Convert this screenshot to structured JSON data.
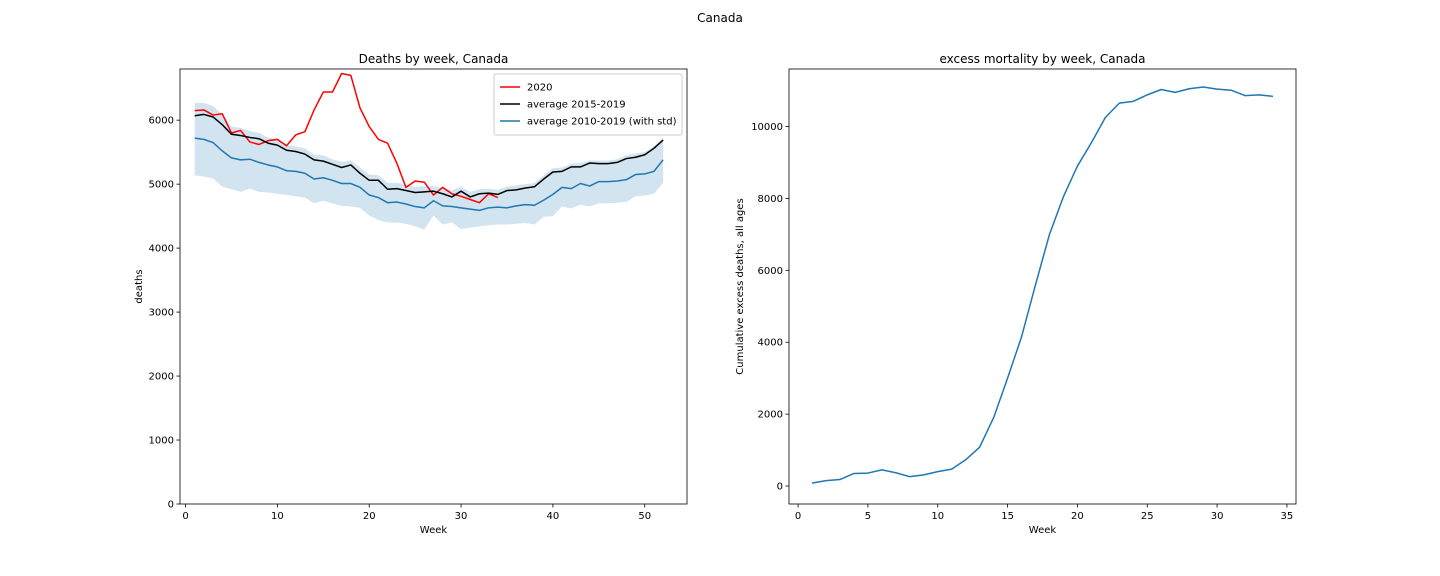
{
  "figure": {
    "suptitle": "Canada"
  },
  "chart_data": [
    {
      "type": "line",
      "title": "Deaths by week, Canada",
      "xlabel": "Week",
      "ylabel": "deaths",
      "xlim": [
        -0.6,
        54.6
      ],
      "ylim": [
        0,
        6800
      ],
      "xticks": [
        0,
        10,
        20,
        30,
        40,
        50
      ],
      "yticks": [
        0,
        1000,
        2000,
        3000,
        4000,
        5000,
        6000
      ],
      "grid": false,
      "legend": "top-right",
      "series": [
        {
          "name": "2020",
          "color": "#ff0000",
          "x": [
            1,
            2,
            3,
            4,
            5,
            6,
            7,
            8,
            9,
            10,
            11,
            12,
            13,
            14,
            15,
            16,
            17,
            18,
            19,
            20,
            21,
            22,
            23,
            24,
            25,
            26,
            27,
            28,
            29,
            30,
            31,
            32,
            33,
            34
          ],
          "values": [
            6150,
            6160,
            6080,
            6100,
            5800,
            5840,
            5660,
            5620,
            5680,
            5700,
            5600,
            5770,
            5820,
            6160,
            6440,
            6440,
            6730,
            6700,
            6190,
            5900,
            5700,
            5640,
            5330,
            4950,
            5050,
            5030,
            4830,
            4950,
            4850,
            4810,
            4760,
            4710,
            4850,
            4790
          ]
        },
        {
          "name": "average 2015-2019",
          "color": "#000000",
          "x": [
            1,
            2,
            3,
            4,
            5,
            6,
            7,
            8,
            9,
            10,
            11,
            12,
            13,
            14,
            15,
            16,
            17,
            18,
            19,
            20,
            21,
            22,
            23,
            24,
            25,
            26,
            27,
            28,
            29,
            30,
            31,
            32,
            33,
            34,
            35,
            36,
            37,
            38,
            39,
            40,
            41,
            42,
            43,
            44,
            45,
            46,
            47,
            48,
            49,
            50,
            51,
            52
          ],
          "values": [
            6070,
            6090,
            6050,
            5930,
            5780,
            5760,
            5730,
            5710,
            5640,
            5610,
            5530,
            5510,
            5470,
            5380,
            5360,
            5310,
            5260,
            5300,
            5170,
            5060,
            5060,
            4920,
            4930,
            4900,
            4870,
            4880,
            4890,
            4850,
            4800,
            4890,
            4800,
            4850,
            4860,
            4840,
            4900,
            4910,
            4940,
            4960,
            5080,
            5190,
            5200,
            5270,
            5270,
            5330,
            5320,
            5320,
            5340,
            5400,
            5420,
            5460,
            5560,
            5690
          ]
        },
        {
          "name": "average 2010-2019 (with std)",
          "color": "#1f77b4",
          "band_color": "#1f77b4",
          "x": [
            1,
            2,
            3,
            4,
            5,
            6,
            7,
            8,
            9,
            10,
            11,
            12,
            13,
            14,
            15,
            16,
            17,
            18,
            19,
            20,
            21,
            22,
            23,
            24,
            25,
            26,
            27,
            28,
            29,
            30,
            31,
            32,
            33,
            34,
            35,
            36,
            37,
            38,
            39,
            40,
            41,
            42,
            43,
            44,
            45,
            46,
            47,
            48,
            49,
            50,
            51,
            52
          ],
          "values": [
            5720,
            5700,
            5650,
            5520,
            5410,
            5380,
            5390,
            5340,
            5300,
            5270,
            5210,
            5200,
            5170,
            5080,
            5100,
            5060,
            5010,
            5010,
            4950,
            4830,
            4790,
            4710,
            4720,
            4690,
            4650,
            4630,
            4740,
            4660,
            4650,
            4630,
            4610,
            4590,
            4630,
            4640,
            4630,
            4660,
            4680,
            4670,
            4750,
            4840,
            4950,
            4930,
            5010,
            4970,
            5040,
            5040,
            5050,
            5070,
            5150,
            5160,
            5200,
            5380
          ]
        }
      ],
      "band": {
        "upper": [
          6270,
          6270,
          6220,
          6090,
          5900,
          5880,
          5830,
          5800,
          5730,
          5700,
          5610,
          5590,
          5560,
          5460,
          5450,
          5390,
          5350,
          5370,
          5260,
          5150,
          5140,
          5020,
          5020,
          4990,
          4960,
          4970,
          4970,
          4940,
          4900,
          4960,
          4880,
          4920,
          4930,
          4910,
          4960,
          4980,
          5000,
          5020,
          5140,
          5250,
          5260,
          5320,
          5330,
          5370,
          5370,
          5370,
          5390,
          5450,
          5480,
          5500,
          5590,
          5730
        ],
        "lower": [
          5140,
          5120,
          5090,
          4960,
          4920,
          4880,
          4930,
          4880,
          4870,
          4850,
          4830,
          4810,
          4790,
          4700,
          4740,
          4700,
          4660,
          4650,
          4630,
          4510,
          4440,
          4400,
          4400,
          4380,
          4340,
          4290,
          4510,
          4370,
          4400,
          4300,
          4320,
          4340,
          4360,
          4370,
          4370,
          4380,
          4390,
          4370,
          4490,
          4500,
          4650,
          4620,
          4680,
          4650,
          4700,
          4700,
          4710,
          4720,
          4810,
          4820,
          4850,
          5020
        ]
      }
    },
    {
      "type": "line",
      "title": "excess mortality by week, Canada",
      "xlabel": "Week",
      "ylabel": "Cumulative excess deaths, all ages",
      "xlim": [
        -0.65,
        35.65
      ],
      "ylim": [
        -500,
        11600
      ],
      "xticks": [
        0,
        5,
        10,
        15,
        20,
        25,
        30,
        35
      ],
      "yticks": [
        0,
        2000,
        4000,
        6000,
        8000,
        10000
      ],
      "grid": false,
      "series": [
        {
          "color": "#1f77b4",
          "x": [
            1,
            2,
            3,
            4,
            5,
            6,
            7,
            8,
            9,
            10,
            11,
            12,
            13,
            14,
            15,
            16,
            17,
            18,
            19,
            20,
            21,
            22,
            23,
            24,
            25,
            26,
            27,
            28,
            29,
            30,
            31,
            32,
            33,
            34
          ],
          "values": [
            80,
            150,
            180,
            350,
            360,
            450,
            370,
            260,
            310,
            400,
            470,
            730,
            1080,
            1900,
            3000,
            4150,
            5600,
            7000,
            8050,
            8900,
            9550,
            10250,
            10650,
            10700,
            10880,
            11030,
            10950,
            11050,
            11100,
            11040,
            11010,
            10860,
            10880,
            10840
          ]
        }
      ]
    }
  ]
}
